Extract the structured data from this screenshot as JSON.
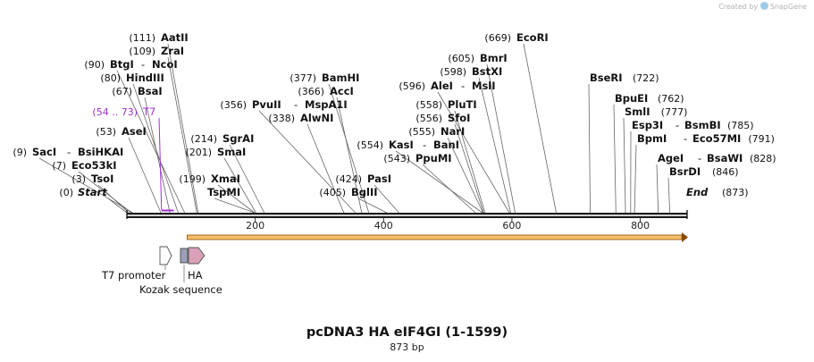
{
  "watermark": {
    "prefix": "Created by",
    "brand": "SnapGene"
  },
  "map": {
    "title": "pcDNA3 HA eIF4GI (1-1599)",
    "length_label": "873 bp",
    "length_bp": 873,
    "start_label": "Start",
    "start_pos": "(0)",
    "end_label": "End",
    "end_pos": "(873)",
    "ticks": [
      {
        "bp": 200,
        "label": "200"
      },
      {
        "bp": 400,
        "label": "400"
      },
      {
        "bp": 600,
        "label": "600"
      },
      {
        "bp": 800,
        "label": "800"
      }
    ],
    "sites": [
      {
        "bp": 3,
        "pos": "(3)",
        "name": "TsoI"
      },
      {
        "bp": 7,
        "pos": "(7)",
        "name": "Eco53kI"
      },
      {
        "bp": 9,
        "pos": "(9)",
        "name": "SacI",
        "alias": "BsiHKAI"
      },
      {
        "bp": 53,
        "pos": "(53)",
        "name": "AseI"
      },
      {
        "bp": 67,
        "pos": "(67)",
        "name": "BsaI"
      },
      {
        "bp": 80,
        "pos": "(80)",
        "name": "HindIII"
      },
      {
        "bp": 90,
        "pos": "(90)",
        "name": "BtgI",
        "alias": "NcoI"
      },
      {
        "bp": 109,
        "pos": "(109)",
        "name": "ZraI"
      },
      {
        "bp": 111,
        "pos": "(111)",
        "name": "AatII"
      },
      {
        "bp": 199,
        "pos": "(199)",
        "name": "XmaI"
      },
      {
        "bp": 201,
        "pos": "(201)",
        "name": "SmaI"
      },
      {
        "bp": 214,
        "pos": "(214)",
        "name": "SgrAI"
      },
      {
        "bp": 199,
        "pos": "",
        "name": "TspMI"
      },
      {
        "bp": 338,
        "pos": "(338)",
        "name": "AlwNI"
      },
      {
        "bp": 356,
        "pos": "(356)",
        "name": "PvuII",
        "alias": "MspA1I"
      },
      {
        "bp": 366,
        "pos": "(366)",
        "name": "AccI"
      },
      {
        "bp": 377,
        "pos": "(377)",
        "name": "BamHI"
      },
      {
        "bp": 405,
        "pos": "(405)",
        "name": "BglII"
      },
      {
        "bp": 424,
        "pos": "(424)",
        "name": "PasI"
      },
      {
        "bp": 543,
        "pos": "(543)",
        "name": "PpuMI"
      },
      {
        "bp": 554,
        "pos": "(554)",
        "name": "KasI",
        "alias": "BanI"
      },
      {
        "bp": 555,
        "pos": "(555)",
        "name": "NarI"
      },
      {
        "bp": 556,
        "pos": "(556)",
        "name": "SfoI"
      },
      {
        "bp": 558,
        "pos": "(558)",
        "name": "PluTI"
      },
      {
        "bp": 596,
        "pos": "(596)",
        "name": "AleI",
        "alias": "MslI"
      },
      {
        "bp": 598,
        "pos": "(598)",
        "name": "BstXI"
      },
      {
        "bp": 605,
        "pos": "(605)",
        "name": "BmrI"
      },
      {
        "bp": 669,
        "pos": "(669)",
        "name": "EcoRI"
      },
      {
        "bp": 722,
        "pos": "(722)",
        "name": "BseRI"
      },
      {
        "bp": 762,
        "pos": "(762)",
        "name": "BpuEI"
      },
      {
        "bp": 777,
        "pos": "(777)",
        "name": "SmlI"
      },
      {
        "bp": 785,
        "pos": "(785)",
        "name": "Esp3I",
        "alias": "BsmBI"
      },
      {
        "bp": 791,
        "pos": "(791)",
        "name": "BpmI",
        "alias": "Eco57MI"
      },
      {
        "bp": 828,
        "pos": "(828)",
        "name": "AgeI",
        "alias": "BsaWI"
      },
      {
        "bp": 846,
        "pos": "(846)",
        "name": "BsrDI"
      }
    ],
    "primer": {
      "name": "T7",
      "pos": "(54 .. 73)",
      "start_bp": 54,
      "end_bp": 73
    },
    "orf": {
      "start_bp": 94,
      "end_bp": 873
    },
    "features": [
      {
        "name": "T7 promoter"
      },
      {
        "name": "Kozak sequence"
      },
      {
        "name": "HA"
      }
    ]
  },
  "colors": {
    "backbone": "#1a1a1a",
    "cut_line": "#666666",
    "primer": "#a030d0",
    "orf_fill": "#f5c06a",
    "orf_edge": "#8a4a00",
    "promoter_fill": "#ffffff",
    "kozak_fill": "#9aa0b8",
    "ha_fill": "#d9a0b8"
  }
}
